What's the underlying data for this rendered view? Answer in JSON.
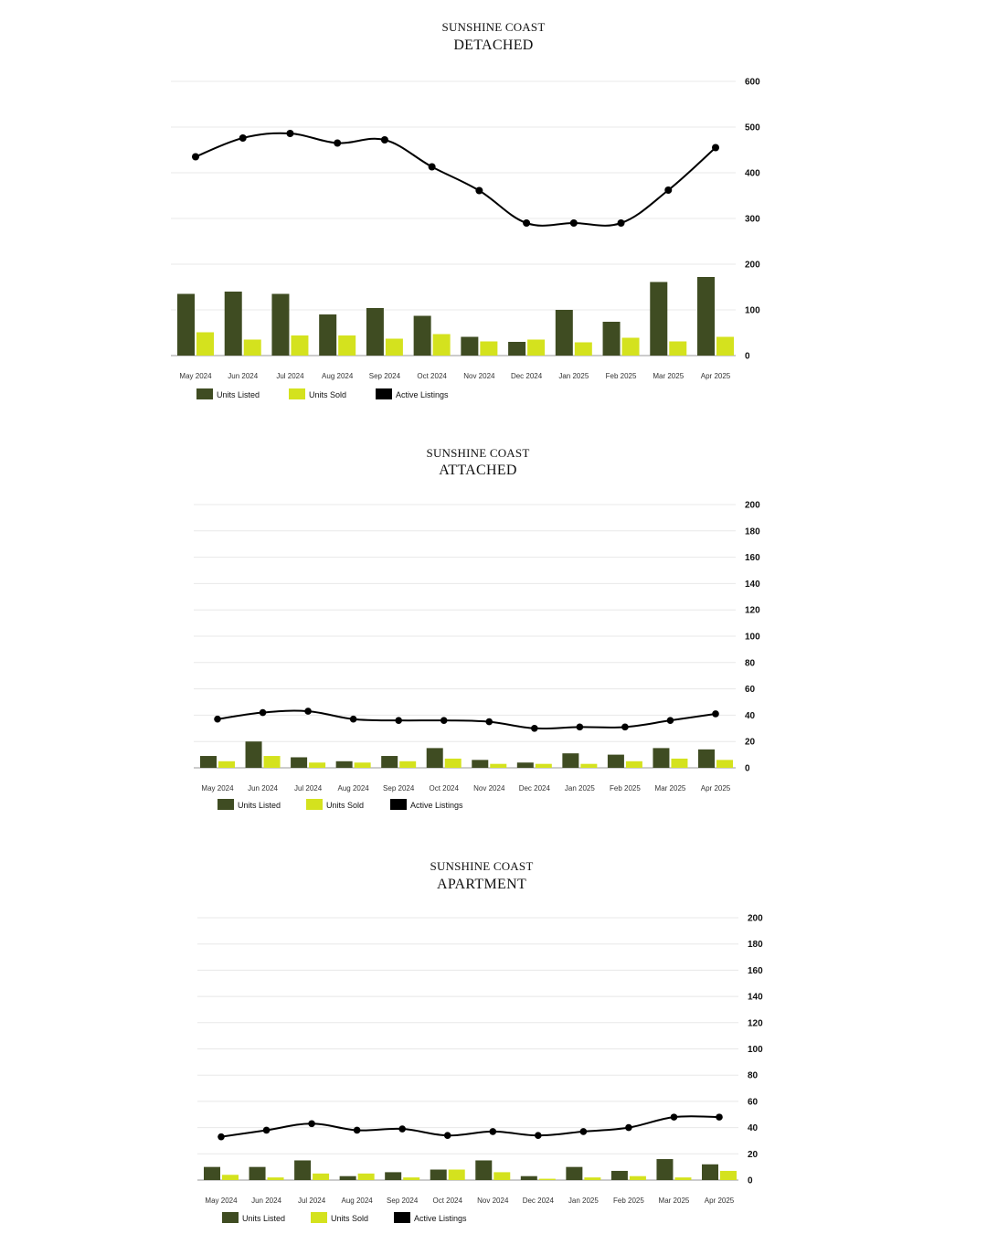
{
  "colors": {
    "listed": "#3f4c22",
    "sold": "#d4e21e",
    "active": "#000000",
    "grid": "#e8e8e8"
  },
  "legend": {
    "listed": "Units Listed",
    "sold": "Units Sold",
    "active": "Active Listings"
  },
  "chart_data": [
    {
      "type": "bar+line",
      "subtitle": "SUNSHINE COAST",
      "title": "DETACHED",
      "categories": [
        "May 2024",
        "Jun 2024",
        "Jul 2024",
        "Aug 2024",
        "Sep 2024",
        "Oct 2024",
        "Nov 2024",
        "Dec 2024",
        "Jan 2025",
        "Feb 2025",
        "Mar 2025",
        "Apr 2025"
      ],
      "series": [
        {
          "name": "Units Listed",
          "type": "bar",
          "values": [
            135,
            140,
            135,
            90,
            104,
            87,
            41,
            30,
            100,
            74,
            161,
            172
          ]
        },
        {
          "name": "Units Sold",
          "type": "bar",
          "values": [
            51,
            35,
            44,
            44,
            37,
            47,
            31,
            35,
            29,
            39,
            31,
            41
          ]
        },
        {
          "name": "Active Listings",
          "type": "line",
          "values": [
            435,
            476,
            486,
            465,
            472,
            413,
            361,
            290,
            290,
            290,
            362,
            455
          ]
        }
      ],
      "yticks": [
        0,
        100,
        200,
        300,
        400,
        500,
        600
      ],
      "ylim": [
        0,
        600
      ]
    },
    {
      "type": "bar+line",
      "subtitle": "SUNSHINE COAST",
      "title": "ATTACHED",
      "categories": [
        "May 2024",
        "Jun 2024",
        "Jul 2024",
        "Aug 2024",
        "Sep 2024",
        "Oct 2024",
        "Nov 2024",
        "Dec 2024",
        "Jan 2025",
        "Feb 2025",
        "Mar 2025",
        "Apr 2025"
      ],
      "series": [
        {
          "name": "Units Listed",
          "type": "bar",
          "values": [
            9,
            20,
            8,
            5,
            9,
            15,
            6,
            4,
            11,
            10,
            15,
            14
          ]
        },
        {
          "name": "Units Sold",
          "type": "bar",
          "values": [
            5,
            9,
            4,
            4,
            5,
            7,
            3,
            3,
            3,
            5,
            7,
            6
          ]
        },
        {
          "name": "Active Listings",
          "type": "line",
          "values": [
            37,
            42,
            43,
            37,
            36,
            36,
            35,
            30,
            31,
            31,
            36,
            41
          ]
        }
      ],
      "yticks": [
        0,
        20,
        40,
        60,
        80,
        100,
        120,
        140,
        160,
        180,
        200
      ],
      "ylim": [
        0,
        200
      ]
    },
    {
      "type": "bar+line",
      "subtitle": "SUNSHINE COAST",
      "title": "APARTMENT",
      "categories": [
        "May 2024",
        "Jun 2024",
        "Jul 2024",
        "Aug 2024",
        "Sep 2024",
        "Oct 2024",
        "Nov 2024",
        "Dec 2024",
        "Jan 2025",
        "Feb 2025",
        "Mar 2025",
        "Apr 2025"
      ],
      "series": [
        {
          "name": "Units Listed",
          "type": "bar",
          "values": [
            10,
            10,
            15,
            3,
            6,
            8,
            15,
            3,
            10,
            7,
            16,
            12
          ]
        },
        {
          "name": "Units Sold",
          "type": "bar",
          "values": [
            4,
            2,
            5,
            5,
            2,
            8,
            6,
            1,
            2,
            3,
            2,
            7
          ]
        },
        {
          "name": "Active Listings",
          "type": "line",
          "values": [
            33,
            38,
            43,
            38,
            39,
            34,
            37,
            34,
            37,
            40,
            48,
            48
          ]
        }
      ],
      "yticks": [
        0,
        20,
        40,
        60,
        80,
        100,
        120,
        140,
        160,
        180,
        200
      ],
      "ylim": [
        0,
        200
      ]
    }
  ]
}
